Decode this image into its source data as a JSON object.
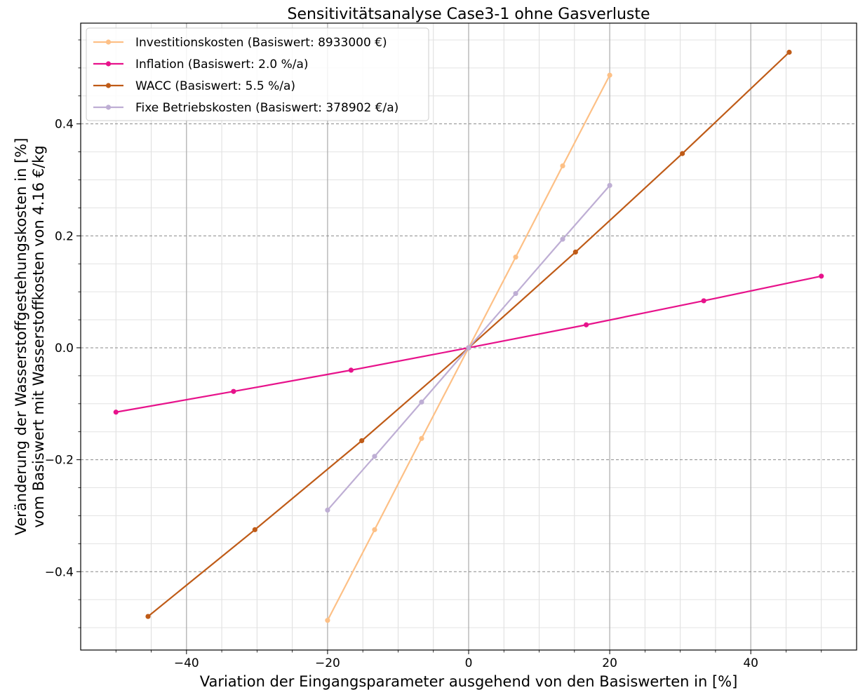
{
  "chart_data": {
    "type": "line",
    "title": "Sensitivitätsanalyse Case3-1 ohne Gasverluste",
    "xlabel": "Variation der Eingangsparameter ausgehend von den Basiswerten in [%]",
    "ylabel_line1": "Veränderung der Wasserstoffgestehungskosten in [%]",
    "ylabel_line2": "vom Basiswert mit Wasserstoffkosten von 4.16 €/kg",
    "xlim": [
      -55,
      55
    ],
    "ylim": [
      -0.54,
      0.58
    ],
    "x_ticks": [
      -40,
      -20,
      0,
      20,
      40
    ],
    "x_tick_labels": [
      "−40",
      "−20",
      "0",
      "20",
      "40"
    ],
    "y_ticks": [
      -0.4,
      -0.2,
      0.0,
      0.2,
      0.4
    ],
    "y_tick_labels": [
      "−0.4",
      "−0.2",
      "0.0",
      "0.2",
      "0.4"
    ],
    "grid": "major and minor (vertical grey lines, horizontal dashed major lines)",
    "legend_position": "top-left",
    "series": [
      {
        "name": "Investitionskosten (Basiswert: 8933000 €)",
        "color": "#fdc086",
        "x": [
          -20,
          -13.33,
          -6.67,
          0,
          6.67,
          13.33,
          20
        ],
        "y": [
          -0.487,
          -0.325,
          -0.162,
          0.0,
          0.162,
          0.325,
          0.487
        ]
      },
      {
        "name": "Inflation (Basiswert: 2.0 %/a)",
        "color": "#e7128b",
        "x": [
          -50,
          -33.33,
          -16.67,
          0,
          16.67,
          33.33,
          50
        ],
        "y": [
          -0.115,
          -0.078,
          -0.04,
          0.0,
          0.041,
          0.084,
          0.128
        ]
      },
      {
        "name": "WACC (Basiswert: 5.5 %/a)",
        "color": "#bf5b17",
        "x": [
          -45.45,
          -30.3,
          -15.15,
          0,
          15.15,
          30.3,
          45.45
        ],
        "y": [
          -0.48,
          -0.325,
          -0.166,
          0.0,
          0.171,
          0.347,
          0.528
        ]
      },
      {
        "name": "Fixe Betriebskosten (Basiswert: 378902 €/a)",
        "color": "#beaed4",
        "x": [
          -20,
          -13.33,
          -6.67,
          0,
          6.67,
          13.33,
          20
        ],
        "y": [
          -0.29,
          -0.194,
          -0.097,
          0.0,
          0.097,
          0.194,
          0.29
        ]
      }
    ]
  }
}
